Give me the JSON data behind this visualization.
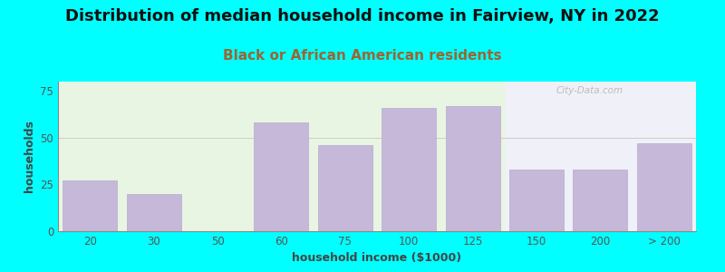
{
  "title": "Distribution of median household income in Fairview, NY in 2022",
  "subtitle": "Black or African American residents",
  "xlabel": "household income ($1000)",
  "ylabel": "households",
  "background_color": "#00FFFF",
  "bar_color": "#c5b8d8",
  "bar_edge_color": "#b8aad2",
  "categories": [
    "20",
    "30",
    "50",
    "60",
    "75",
    "100",
    "125",
    "150",
    "200",
    "> 200"
  ],
  "values": [
    27,
    20,
    0,
    58,
    46,
    66,
    67,
    33,
    33,
    47
  ],
  "ylim": [
    0,
    80
  ],
  "yticks": [
    0,
    25,
    50,
    75
  ],
  "title_fontsize": 13,
  "subtitle_fontsize": 11,
  "axis_label_fontsize": 9,
  "tick_fontsize": 8.5,
  "left_bg": "#e8f5e2",
  "right_bg": "#f0f0f8",
  "watermark": "City-Data.com",
  "subtitle_color": "#996633",
  "title_color": "#111111",
  "tick_color": "#555555",
  "label_color": "#444444"
}
